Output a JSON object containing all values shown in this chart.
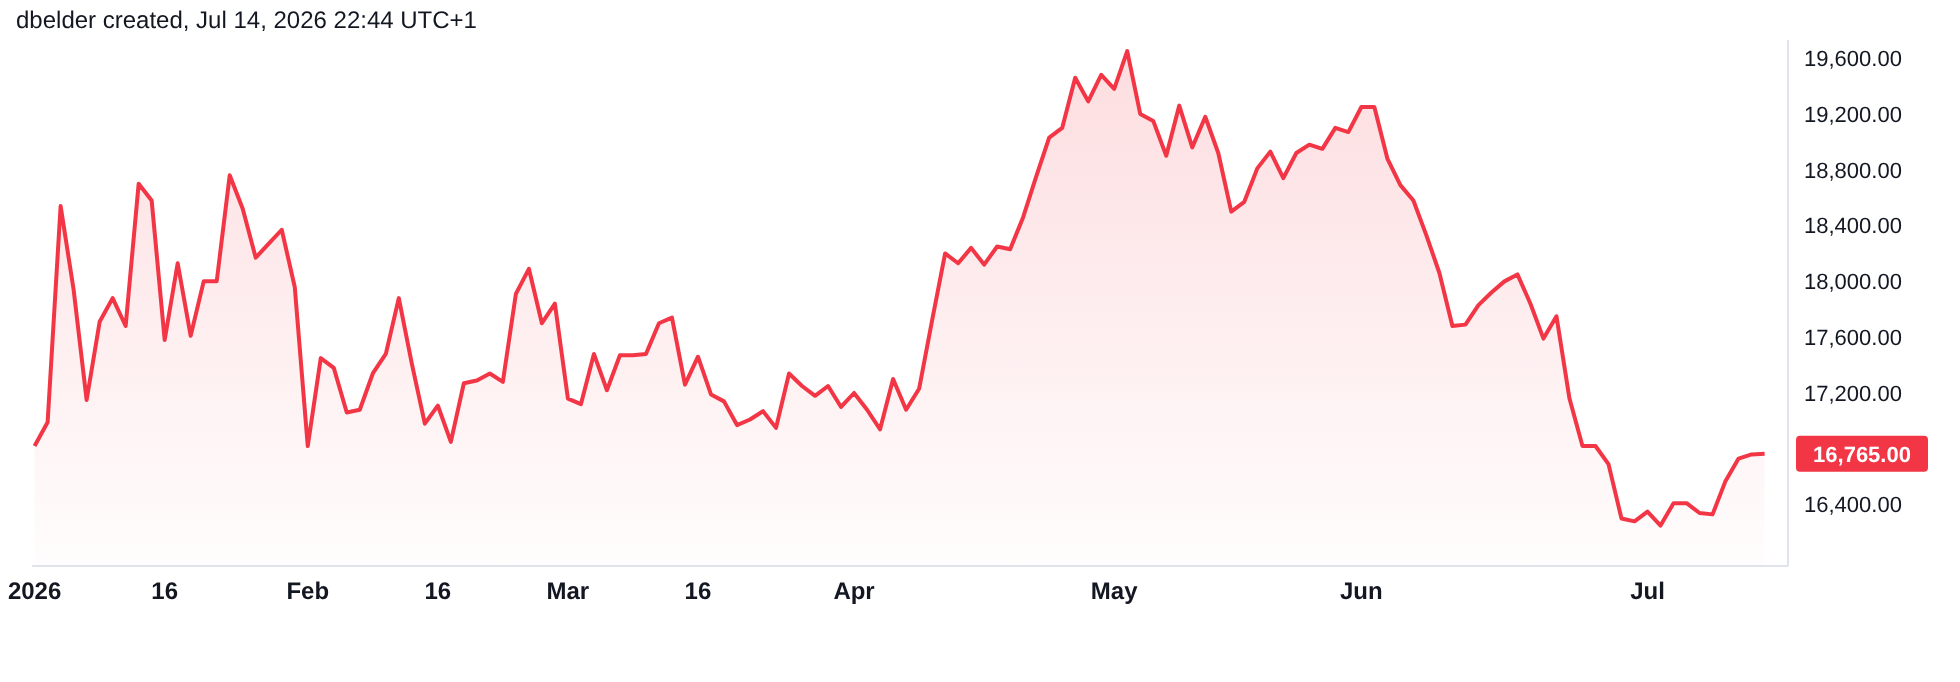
{
  "chart_data": {
    "type": "area",
    "categories": [
      "2026",
      null,
      null,
      null,
      null,
      null,
      null,
      null,
      null,
      null,
      "16",
      null,
      null,
      null,
      null,
      null,
      null,
      null,
      null,
      null,
      null,
      "Feb",
      null,
      null,
      null,
      null,
      null,
      null,
      null,
      null,
      null,
      "16",
      null,
      null,
      null,
      null,
      null,
      null,
      null,
      null,
      null,
      "Mar",
      null,
      null,
      null,
      null,
      null,
      null,
      null,
      null,
      null,
      "16",
      null,
      null,
      null,
      null,
      null,
      null,
      null,
      null,
      null,
      null,
      null,
      "Apr",
      null,
      null,
      null,
      null,
      null,
      null,
      null,
      null,
      null,
      null,
      null,
      null,
      null,
      null,
      null,
      null,
      null,
      null,
      null,
      "May",
      null,
      null,
      null,
      null,
      null,
      null,
      null,
      null,
      null,
      null,
      null,
      null,
      null,
      null,
      null,
      null,
      null,
      null,
      "Jun",
      null,
      null,
      null,
      null,
      null,
      null,
      null,
      null,
      null,
      null,
      null,
      null,
      null,
      null,
      null,
      null,
      null,
      null,
      null,
      null,
      null,
      "Jul",
      null,
      null,
      null,
      null,
      null,
      null,
      null,
      null,
      null
    ],
    "series": [
      {
        "color": "#f23645",
        "values": [
          16820,
          16990,
          18540,
          17940,
          17150,
          17710,
          17880,
          17680,
          18700,
          18580,
          17580,
          18130,
          17610,
          18000,
          18000,
          18760,
          18520,
          18170,
          18270,
          18370,
          17960,
          16820,
          17450,
          17380,
          17060,
          17080,
          17340,
          17480,
          17880,
          17410,
          16980,
          17110,
          16850,
          17270,
          17290,
          17340,
          17280,
          17910,
          18090,
          17700,
          17840,
          17160,
          17120,
          17480,
          17220,
          17470,
          17470,
          17480,
          17700,
          17740,
          17260,
          17460,
          17190,
          17140,
          16970,
          17010,
          17070,
          16950,
          17340,
          17250,
          17180,
          17250,
          17100,
          17200,
          17080,
          16940,
          17300,
          17080,
          17230,
          17720,
          18200,
          18130,
          18240,
          18120,
          18250,
          18230,
          18460,
          18750,
          19030,
          19100,
          19460,
          19290,
          19480,
          19380,
          19650,
          19200,
          19150,
          18900,
          19260,
          18960,
          19180,
          18920,
          18500,
          18570,
          18810,
          18930,
          18740,
          18920,
          18980,
          18950,
          19100,
          19070,
          19250,
          19250,
          18880,
          18690,
          18580,
          18330,
          18060,
          17680,
          17690,
          17830,
          17920,
          18000,
          18050,
          17840,
          17590,
          17750,
          17160,
          16820,
          16820,
          16690,
          16300,
          16280,
          16350,
          16250,
          16410,
          16410,
          16340,
          16330,
          16570,
          16730,
          16760,
          16765
        ]
      }
    ],
    "ylim": [
      15960,
      19730
    ],
    "yticks": [
      {
        "value": 16400,
        "label": "16,400.00"
      },
      {
        "value": 17200,
        "label": "17,200.00"
      },
      {
        "value": 17600,
        "label": "17,600.00"
      },
      {
        "value": 18000,
        "label": "18,000.00"
      },
      {
        "value": 18400,
        "label": "18,400.00"
      },
      {
        "value": 18800,
        "label": "18,800.00"
      },
      {
        "value": 19200,
        "label": "19,200.00"
      },
      {
        "value": 19600,
        "label": "19,600.00"
      }
    ],
    "annotations": [
      "dbelder created, Jul 14, 2026 22:44 UTC+1",
      "16,765.00"
    ]
  }
}
